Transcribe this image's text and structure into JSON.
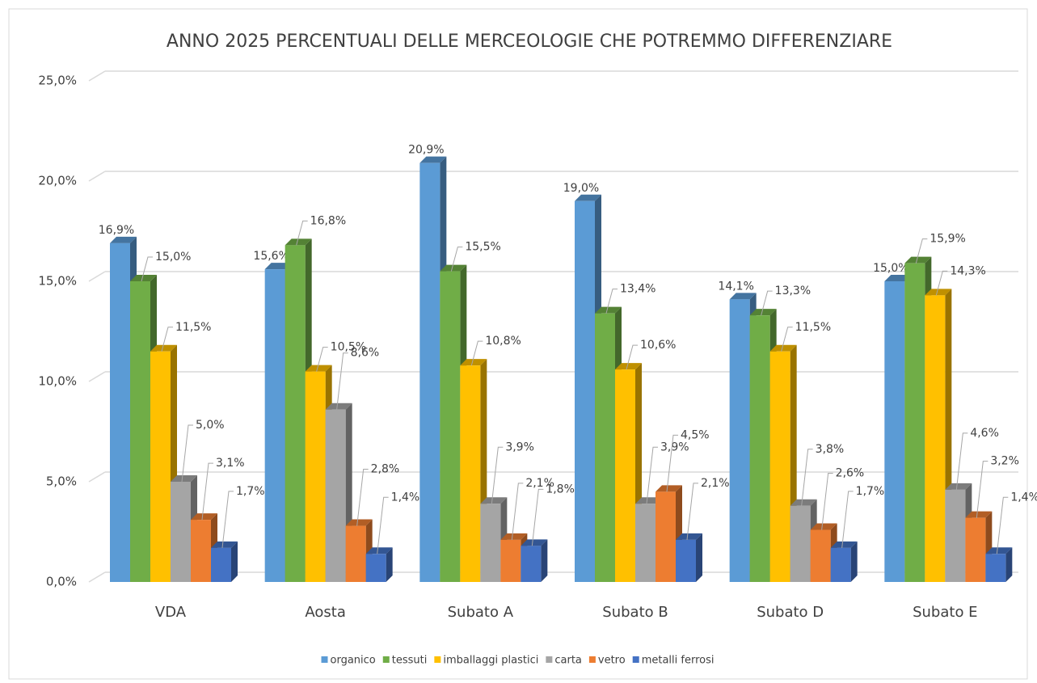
{
  "chart_data": {
    "type": "bar3d",
    "title": "ANNO 2025 PERCENTUALI DELLE MERCEOLOGIE CHE POTREMMO DIFFERENZIARE",
    "categories": [
      "VDA",
      "Aosta",
      "Subato A",
      "Subato B",
      "Subato D",
      "Subato E"
    ],
    "series": [
      {
        "name": "organico",
        "color": "#5b9bd5",
        "values": [
          16.9,
          15.6,
          20.9,
          19.0,
          14.1,
          15.0
        ],
        "value_labels": [
          "16,9%",
          "15,6%",
          "20,9%",
          "19,0%",
          "14,1%",
          "15,0%"
        ]
      },
      {
        "name": "tessuti",
        "color": "#70ad47",
        "values": [
          15.0,
          16.8,
          15.5,
          13.4,
          13.3,
          15.9
        ],
        "value_labels": [
          "15,0%",
          "16,8%",
          "15,5%",
          "13,4%",
          "13,3%",
          "15,9%"
        ]
      },
      {
        "name": "imballaggi plastici",
        "color": "#ffc000",
        "values": [
          11.5,
          10.5,
          10.8,
          10.6,
          11.5,
          14.3
        ],
        "value_labels": [
          "11,5%",
          "10,5%",
          "10,8%",
          "10,6%",
          "11,5%",
          "14,3%"
        ]
      },
      {
        "name": "carta",
        "color": "#a5a5a5",
        "values": [
          5.0,
          8.6,
          3.9,
          3.9,
          3.8,
          4.6
        ],
        "value_labels": [
          "5,0%",
          "8,6%",
          "3,9%",
          "3,9%",
          "3,8%",
          "4,6%"
        ]
      },
      {
        "name": "vetro",
        "color": "#ed7d31",
        "values": [
          3.1,
          2.8,
          2.1,
          4.5,
          2.6,
          3.2
        ],
        "value_labels": [
          "3,1%",
          "2,8%",
          "2,1%",
          "4,5%",
          "2,6%",
          "3,2%"
        ]
      },
      {
        "name": "metalli ferrosi",
        "color": "#4472c4",
        "values": [
          1.7,
          1.4,
          1.8,
          2.1,
          1.7,
          1.4
        ],
        "value_labels": [
          "1,7%",
          "1,4%",
          "1,8%",
          "2,1%",
          "1,7%",
          "1,4%"
        ]
      }
    ],
    "ylim": [
      0,
      25
    ],
    "yticks": [
      {
        "value": 0,
        "label": "0,0%"
      },
      {
        "value": 5,
        "label": "5,0%"
      },
      {
        "value": 10,
        "label": "10,0%"
      },
      {
        "value": 15,
        "label": "15,0%"
      },
      {
        "value": 20,
        "label": "20,0%"
      },
      {
        "value": 25,
        "label": "25,0%"
      }
    ],
    "grid": true,
    "legend": "bottom"
  }
}
